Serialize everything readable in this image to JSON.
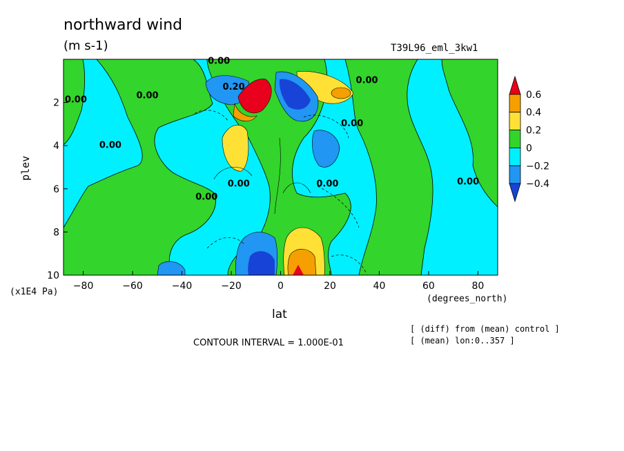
{
  "header": {
    "title": "northward wind",
    "units": "(m s-1)",
    "run_id": "T39L96_eml_3kw1"
  },
  "footer": {
    "contour_interval": "CONTOUR INTERVAL = 1.000E-01",
    "note_diff": "[ (diff) from (mean) control ]",
    "note_mean": "[ (mean) lon:0..357 ]"
  },
  "chart_data": {
    "type": "heatmap",
    "title": "northward wind",
    "xlabel": "lat",
    "ylabel": "plev",
    "x_unit": "(degrees_north)",
    "y_unit": "(x1E4 Pa)",
    "xlim": [
      -88,
      88
    ],
    "ylim": [
      10,
      0
    ],
    "x_ticks": [
      -80,
      -60,
      -40,
      -20,
      0,
      20,
      40,
      60,
      80
    ],
    "x_tick_labels": [
      "−80",
      "−60",
      "−40",
      "−20",
      "0",
      "20",
      "40",
      "60",
      "80"
    ],
    "y_ticks": [
      2,
      4,
      6,
      8,
      10
    ],
    "y_tick_labels": [
      "2",
      "4",
      "6",
      "8",
      "10"
    ],
    "colorbar": {
      "levels": [
        0.6,
        0.4,
        0.2,
        0,
        -0.2,
        -0.4
      ],
      "labels": [
        "0.6",
        "0.4",
        "0.2",
        "0",
        "−0.2",
        "−0.4"
      ],
      "colors": [
        "#e8001c",
        "#f5a000",
        "#ffe135",
        "#33d42b",
        "#00f0ff",
        "#2196f3",
        "#1744d6"
      ]
    },
    "contour_labels": [
      {
        "text": "0.00",
        "lat": -25,
        "plev": 0.2
      },
      {
        "text": "0.20",
        "lat": -19,
        "plev": 1.4
      },
      {
        "text": "0.00",
        "lat": 35,
        "plev": 1.1
      },
      {
        "text": "0.00",
        "lat": -83,
        "plev": 2.0
      },
      {
        "text": "0.00",
        "lat": -54,
        "plev": 1.8
      },
      {
        "text": "0.00",
        "lat": 29,
        "plev": 3.1
      },
      {
        "text": "0.00",
        "lat": -69,
        "plev": 4.1
      },
      {
        "text": "0.00",
        "lat": -17,
        "plev": 5.9
      },
      {
        "text": "0.00",
        "lat": 19,
        "plev": 5.9
      },
      {
        "text": "0.00",
        "lat": -30,
        "plev": 6.5
      },
      {
        "text": "0.00",
        "lat": 76,
        "plev": 5.8
      }
    ],
    "features": [
      {
        "lat": -10,
        "plev": 1.9,
        "value": 0.6
      },
      {
        "lat": -18,
        "plev": 4.0,
        "value": 0.3
      },
      {
        "lat": 10,
        "plev": 1.2,
        "value": 0.3
      },
      {
        "lat": 24,
        "plev": 1.5,
        "value": 0.3
      },
      {
        "lat": 7,
        "plev": 9.6,
        "value": 0.5
      },
      {
        "lat": 10,
        "plev": 2.2,
        "value": -0.4
      },
      {
        "lat": 22,
        "plev": 4.3,
        "value": -0.3
      },
      {
        "lat": -26,
        "plev": 1.4,
        "value": -0.3
      },
      {
        "lat": -8,
        "plev": 9.6,
        "value": -0.5
      },
      {
        "lat": -45,
        "plev": 9.7,
        "value": -0.2
      }
    ],
    "grid": false,
    "legend": "right"
  }
}
